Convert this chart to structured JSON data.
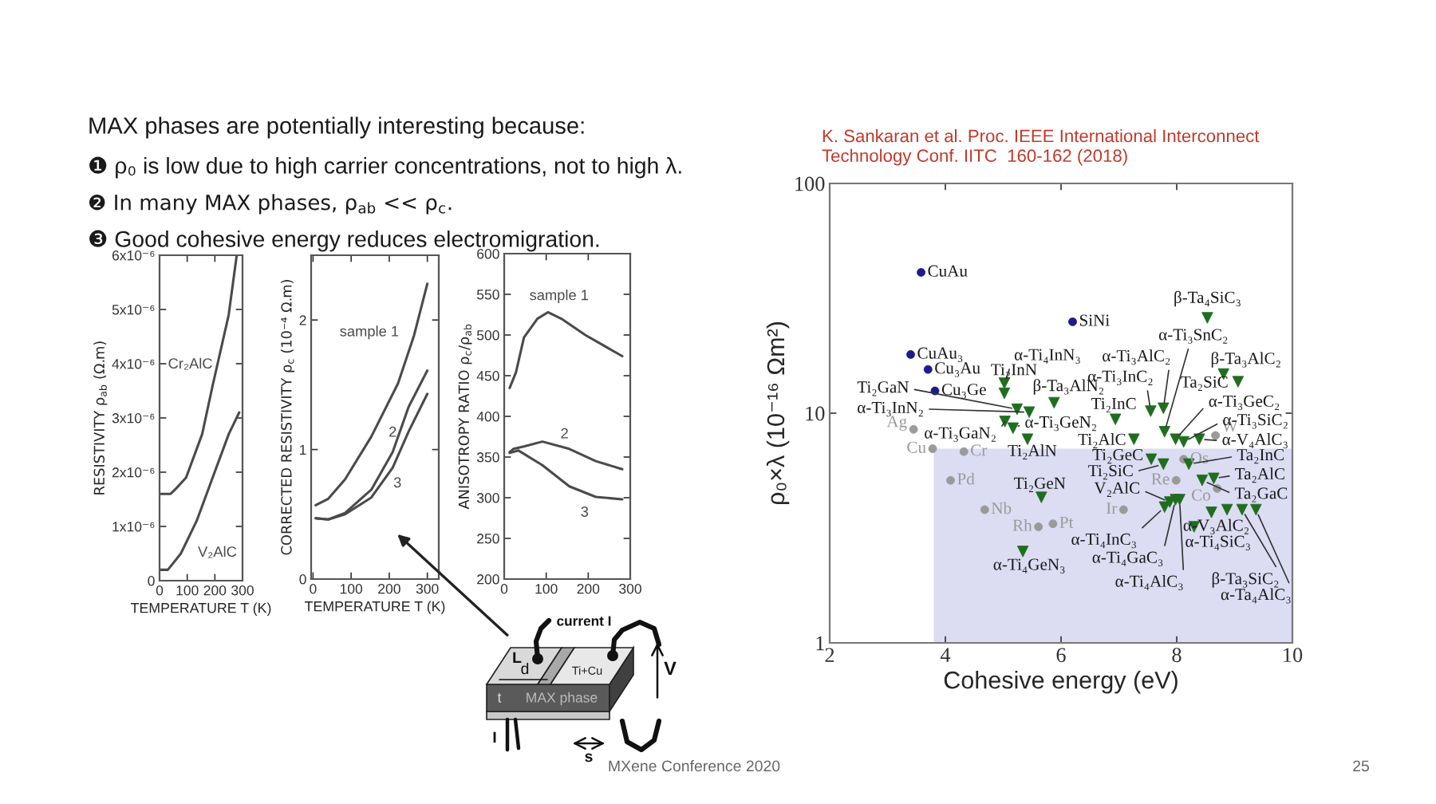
{
  "chart_data": [
    {
      "type": "line",
      "title": "MAX phases are potentially interesting because:",
      "annotations": [
        "❶ ρ₀ is low due to high carrier concentrations, not to high λ.",
        "❷ In many MAX phases, ρ$_{ab}$ << ρ$_{c}$.",
        "❸ Good cohesive energy reduces electromigration."
      ],
      "xlabel": "TEMPERATURE T (K)",
      "ylabel": "RESISTIVITY ρ$_{ab}$ (Ω.m)",
      "xlim": [
        0,
        300
      ],
      "xticks": [
        0,
        100,
        200,
        300
      ],
      "ylim": [
        0,
        6e-06
      ],
      "yticks": [
        0,
        {
          "value": 1e-06,
          "label": "1x10⁻⁶"
        },
        {
          "value": 2e-06,
          "label": "2x10⁻⁶"
        },
        {
          "value": 3e-06,
          "label": "3x10⁻⁶"
        },
        {
          "value": 4e-06,
          "label": "4x10⁻⁶"
        },
        {
          "value": 5e-06,
          "label": "5x10⁻⁶"
        },
        {
          "value": 6e-06,
          "label": "6x10⁻⁶"
        }
      ],
      "series": [
        {
          "name": "Cr₂AlC",
          "color": "#4a4a4a",
          "x": [
            0,
            40,
            60,
            96,
            154,
            192,
            250,
            279
          ],
          "values": [
            1.6e-06,
            1.6e-06,
            1.7e-06,
            1.9e-06,
            2.7e-06,
            3.6e-06,
            4.9e-06,
            6e-06
          ]
        },
        {
          "name": "V₂AlC",
          "color": "#4a4a4a",
          "x": [
            0,
            30,
            77,
            134,
            192,
            250,
            288
          ],
          "values": [
            2e-07,
            2e-07,
            5e-07,
            1.1e-06,
            1.9e-06,
            2.7e-06,
            3.1e-06
          ]
        }
      ]
    },
    {
      "type": "line",
      "xlabel": "TEMPERATURE T (K)",
      "ylabel": "CORRECTED RESISTIVITY ρ$_{c}$ (10⁻⁴ Ω.m)",
      "xlim": [
        -5,
        330
      ],
      "xticks": [
        0,
        100,
        200,
        300
      ],
      "ylim": [
        0,
        2.5
      ],
      "yticks": [
        0,
        1,
        2
      ],
      "annotations": [
        "current I",
        "Ti+Cu",
        "L",
        "d",
        "t",
        "MAX phase",
        "V",
        "I",
        "s"
      ],
      "series": [
        {
          "name": "sample 1",
          "color": "#4a4a4a",
          "x": [
            7,
            40,
            84,
            153,
            223,
            265,
            300
          ],
          "values": [
            0.57,
            0.62,
            0.77,
            1.1,
            1.51,
            1.88,
            2.28
          ]
        },
        {
          "name": "2",
          "color": "#4a4a4a",
          "x": [
            7,
            40,
            84,
            153,
            209,
            251,
            300
          ],
          "values": [
            0.47,
            0.46,
            0.51,
            0.69,
            0.98,
            1.33,
            1.61
          ]
        },
        {
          "name": "3",
          "color": "#4a4a4a",
          "x": [
            7,
            40,
            84,
            153,
            209,
            251,
            300
          ],
          "values": [
            0.47,
            0.46,
            0.5,
            0.63,
            0.86,
            1.14,
            1.43
          ]
        }
      ]
    },
    {
      "type": "line",
      "ylabel": "ANISOTROPY RATIO ρ$_{c}$/ρ$_{ab}$",
      "xlim": [
        0,
        300
      ],
      "xticks": [
        0,
        100,
        200,
        300
      ],
      "ylim": [
        200,
        600
      ],
      "yticks": [
        200,
        250,
        300,
        350,
        400,
        450,
        500,
        550,
        600
      ],
      "series": [
        {
          "name": "sample 1",
          "color": "#4a4a4a",
          "x": [
            13,
            28,
            47,
            79,
            104,
            136,
            193,
            281
          ],
          "values": [
            435,
            454,
            497,
            520,
            528,
            520,
            500,
            474
          ]
        },
        {
          "name": "2",
          "color": "#4a4a4a",
          "x": [
            13,
            22,
            47,
            91,
            155,
            218,
            281
          ],
          "values": [
            356,
            360,
            363,
            369,
            360,
            345,
            335
          ]
        },
        {
          "name": "3",
          "color": "#4a4a4a",
          "x": [
            13,
            34,
            91,
            155,
            218,
            281
          ],
          "values": [
            355,
            358,
            340,
            314,
            301,
            298
          ]
        }
      ]
    },
    {
      "type": "scatter",
      "xlabel": "Cohesive energy (eV)",
      "ylabel": "ρ₀×λ (10⁻¹⁶ Ωm²)",
      "log": "y",
      "xlim": [
        2,
        10
      ],
      "ylim": [
        1,
        100
      ],
      "xticks": [
        2,
        4,
        6,
        8,
        10
      ],
      "yticks": [
        1,
        10,
        100
      ],
      "annotations": [
        "K. Sankaran et al. Proc. IEEE International Interconnect\nTechnology Conf. IITC  160-162 (2018)",
        "MXene Conference 2020",
        "25"
      ],
      "series": [
        {
          "type": "area",
          "color": "#dcdcf3",
          "x": [
            3.8,
            10
          ],
          "values": [
            7,
            7
          ]
        },
        {
          "color": "#1c1c8c",
          "marker": "circle",
          "x": [
            3.58,
            6.2,
            3.4,
            3.7,
            3.82
          ],
          "values": [
            41,
            25,
            18,
            15.5,
            12.5
          ],
          "value_labels": [
            "CuAu",
            "SiNi",
            "CuAu₃",
            "Cu₃Au",
            "Cu₃Ge"
          ]
        },
        {
          "color": "#9a9a9a",
          "marker": "circle",
          "x": [
            3.45,
            3.78,
            4.32,
            4.09,
            4.68,
            5.61,
            5.86,
            7.08,
            7.99,
            8.12,
            8.7,
            8.67
          ],
          "values": [
            8.5,
            7.0,
            6.8,
            5.1,
            3.8,
            3.2,
            3.3,
            3.8,
            5.1,
            6.3,
            4.7,
            8.0
          ],
          "value_labels": [
            "Ag",
            "Cu",
            "Cr",
            "Pd",
            "Nb",
            "Rh",
            "Pt",
            "Ir",
            "Re",
            "Os",
            "Co",
            "W"
          ]
        },
        {
          "color": "#1f6e1f",
          "marker": "triangle",
          "x": [
            8.53,
            8.81,
            9.06,
            5.02,
            5.02,
            5.88,
            5.24,
            5.45,
            6.94,
            7.55,
            7.77,
            5.03,
            5.17,
            7.79,
            7.98,
            8.12,
            8.39,
            5.42,
            7.26,
            7.56,
            7.77,
            8.21,
            8.44,
            8.64,
            5.66,
            7.79,
            7.88,
            7.98,
            8.05,
            8.6,
            8.87,
            8.3,
            9.13,
            9.37,
            5.34
          ],
          "values": [
            26,
            14.8,
            13.7,
            13.5,
            12.2,
            11.1,
            10.4,
            10.1,
            9.4,
            10.2,
            10.5,
            9.2,
            8.6,
            8.3,
            7.7,
            7.5,
            7.7,
            7.7,
            7.7,
            6.3,
            6.0,
            6.0,
            5.1,
            5.2,
            4.3,
            3.9,
            4.1,
            4.2,
            4.2,
            3.7,
            3.8,
            3.2,
            3.8,
            3.8,
            2.5
          ],
          "value_labels": [
            "β-Ta₄SiC₃",
            "β-Ta₃AlC₂",
            "Ta₂SiC",
            "α-Ti₄InN₃",
            "Ti₂InN",
            "β-Ta₃AlN₂",
            "Ti₂GaN",
            "α-Ti₃InN₂",
            "Ti₂InC",
            "α-Ti₃InC₂",
            "α-Ti₃AlC₂",
            "α-Ti₃GaN₂",
            "α-Ti₃GeN₂",
            "α-Ti₃SnC₂",
            "α-Ti₃GeC₂",
            "α-Ti₃SiC₂",
            "α-V₄AlC₃",
            "Ti₂AlN",
            "Ti₂AlC",
            "Ti₂GeC",
            "Ti₂SiC",
            "Ta₂InC",
            "Ta₂GaC",
            "Ta₂AlC",
            "Ti₂GeN",
            "α-Ti₄InC₃",
            "V₂AlC",
            "α-Ti₄GaC₃",
            "α-Ti₄AlC₃",
            "α-V₃AlC₂",
            null,
            "α-Ti₄SiC₃",
            "β-Ta₃SiC₂",
            "α-Ta₄AlC₃",
            "α-Ti₄GeN₃"
          ]
        }
      ]
    }
  ]
}
